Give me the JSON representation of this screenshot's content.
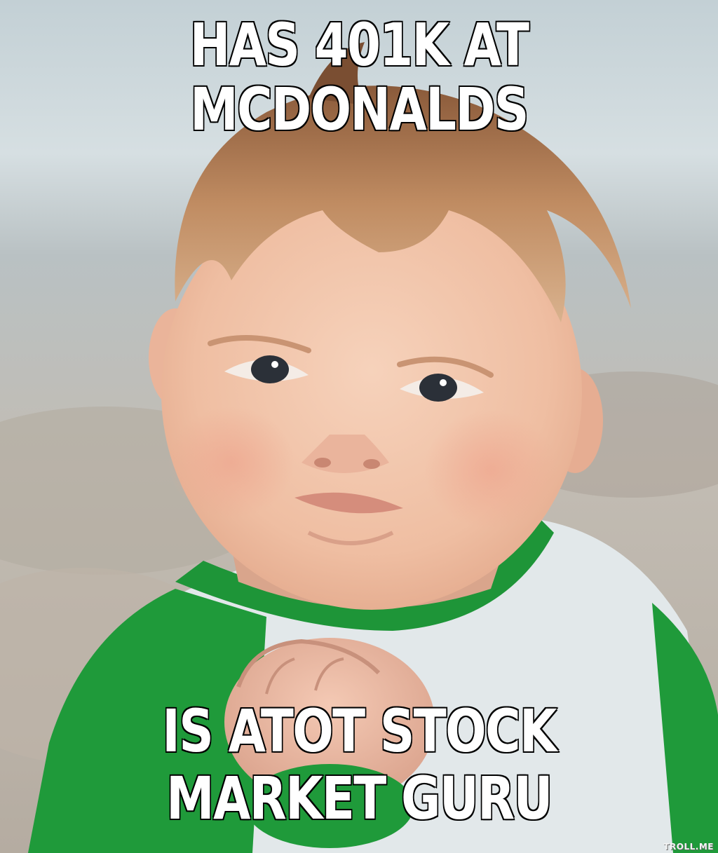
{
  "meme": {
    "top_text": "HAS 401K AT MCDONALDS",
    "bottom_text": "IS ATOT STOCK MARKET GURU",
    "watermark": "TROLL.ME"
  },
  "colors": {
    "text_fill": "#ffffff",
    "text_outline": "#000000",
    "shirt_green": "#1f9a3a",
    "shirt_white": "#e4eaec",
    "skin": "#f2c3a6",
    "hair": "#b8825a",
    "background_sky": "#c9d4d8",
    "background_sand": "#bcb2a6"
  }
}
